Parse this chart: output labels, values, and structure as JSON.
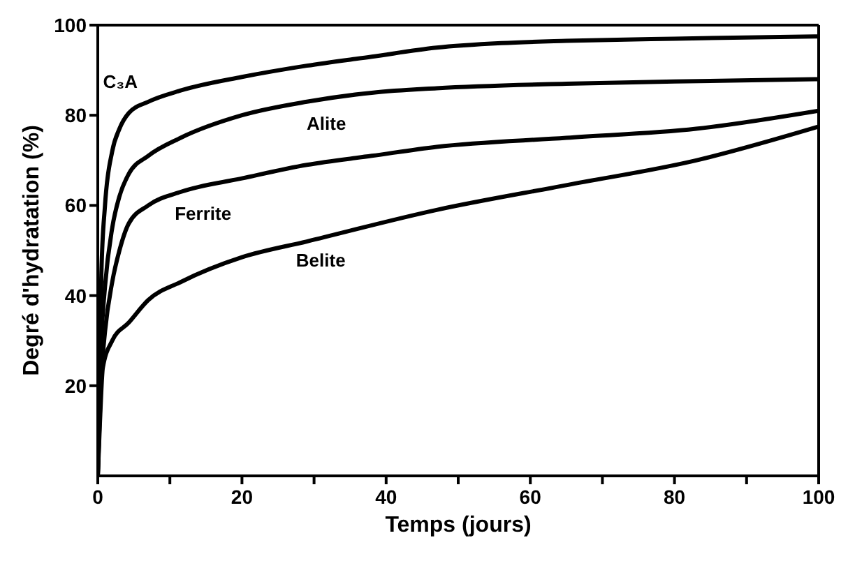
{
  "chart_data": {
    "type": "line",
    "xlabel": "Temps (jours)",
    "ylabel": "Degré d'hydratation (%)",
    "xlim": [
      0,
      100
    ],
    "ylim": [
      0,
      100
    ],
    "xticks": [
      0,
      {
        "value": 10,
        "label": null
      },
      20,
      {
        "value": 30,
        "label": null
      },
      40,
      {
        "value": 50,
        "label": null
      },
      60,
      {
        "value": 70,
        "label": null
      },
      80,
      {
        "value": 90,
        "label": null
      },
      100
    ],
    "yticks": [
      20,
      40,
      60,
      80,
      100
    ],
    "marker": "none",
    "line_style": "solid",
    "series": [
      {
        "name": "C₃A",
        "color": "#000000",
        "x": [
          0,
          0.5,
          1,
          2,
          3,
          4.3,
          7,
          11.5,
          20,
          29,
          38,
          47,
          56,
          65,
          80,
          100
        ],
        "values": [
          0,
          45,
          60,
          72,
          77,
          80.5,
          83,
          85.5,
          88.5,
          91,
          93,
          95,
          96,
          96.5,
          97,
          97.5
        ]
      },
      {
        "name": "Alite",
        "color": "#000000",
        "x": [
          0,
          0.5,
          1,
          2,
          3,
          4.3,
          7,
          11.5,
          20,
          29,
          38,
          47,
          65,
          80,
          100
        ],
        "values": [
          0,
          30,
          42,
          55,
          62,
          67,
          71,
          75,
          80,
          83,
          85,
          86,
          87,
          87.5,
          88
        ]
      },
      {
        "name": "Ferrite",
        "color": "#000000",
        "x": [
          0,
          0.5,
          1,
          2,
          3,
          4.3,
          7,
          11.5,
          20,
          29,
          38,
          47,
          65,
          83,
          100
        ],
        "values": [
          0,
          22,
          32,
          43,
          50,
          56,
          60,
          63,
          66,
          69,
          71,
          73,
          75,
          77,
          81
        ]
      },
      {
        "name": "Belite",
        "color": "#000000",
        "x": [
          0,
          0.3,
          0.7,
          2,
          4.3,
          7,
          11.5,
          20,
          29,
          47,
          65,
          83,
          100
        ],
        "values": [
          0,
          12,
          24,
          30,
          34,
          39,
          43,
          48.5,
          52,
          59,
          64.5,
          70,
          77.5
        ]
      }
    ]
  }
}
